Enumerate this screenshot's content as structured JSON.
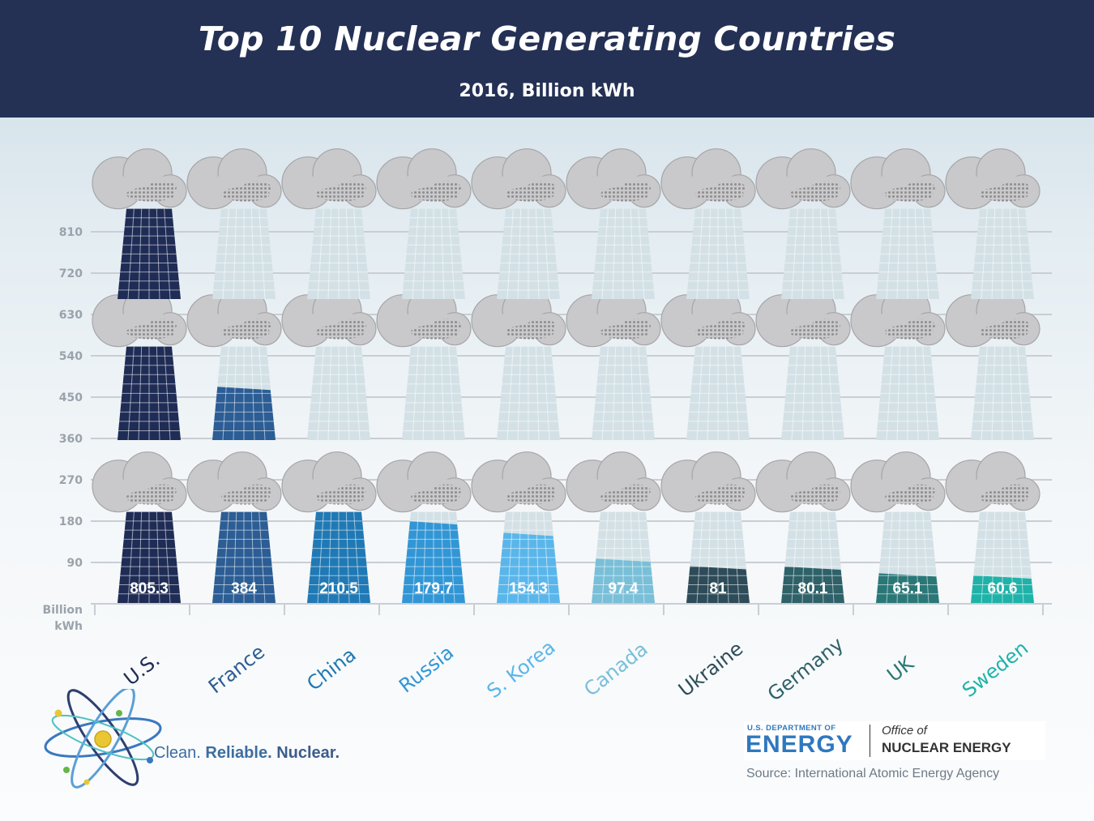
{
  "header": {
    "title": "Top 10 Nuclear Generating Countries",
    "subtitle": "2016, Billion kWh"
  },
  "chart_data": {
    "type": "bar",
    "title": "Top 10 Nuclear Generating Countries",
    "subtitle": "2016, Billion kWh",
    "ylabel": "Billion kWh",
    "ylim": [
      0,
      810
    ],
    "yticks": [
      90,
      180,
      270,
      360,
      450,
      540,
      630,
      720,
      810
    ],
    "grid": true,
    "categories": [
      "U.S.",
      "France",
      "China",
      "Russia",
      "S. Korea",
      "Canada",
      "Ukraine",
      "Germany",
      "UK",
      "Sweden"
    ],
    "values": [
      805.3,
      384,
      210.5,
      179.7,
      154.3,
      97.4,
      81,
      80.1,
      65.1,
      60.6
    ],
    "value_labels": [
      "805.3",
      "384",
      "210.5",
      "179.7",
      "154.3",
      "97.4",
      "81",
      "80.1",
      "65.1",
      "60.6"
    ],
    "colors": [
      "#1f2c55",
      "#2c5d94",
      "#2079b4",
      "#3296d5",
      "#5ab6ea",
      "#79bfd8",
      "#2d4b58",
      "#2e6168",
      "#2a7777",
      "#1fb2a8"
    ]
  },
  "footer": {
    "tagline_part1": "Clean.",
    "tagline_part2": "Reliable.",
    "tagline_part3": "Nuclear.",
    "doe_small": "U.S. DEPARTMENT OF",
    "doe_big": "ENERGY",
    "office_of": "Office of",
    "office_name": "NUCLEAR ENERGY",
    "source": "Source: International Atomic Energy Agency"
  },
  "style": {
    "header_bg": "#243155",
    "empty_tower": "#d3e1e6",
    "cloud": "#c9c9cb"
  }
}
